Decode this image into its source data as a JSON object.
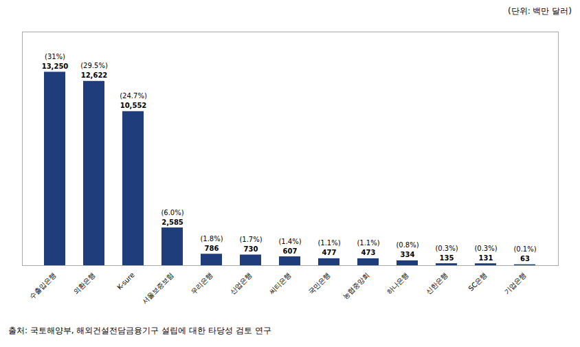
{
  "chart_data": {
    "type": "bar",
    "subtitle": "(단위: 백만 달러)",
    "caption": "출처: 국토해양부, 해외건설전담금융기구 설립에 대한 타당성 검토 연구",
    "categories": [
      "수출입은행",
      "외환은행",
      "K-sure",
      "서울보증보험",
      "우리은행",
      "산업은행",
      "씨티은행",
      "국민은행",
      "농협중앙회",
      "하나은행",
      "신한은행",
      "SC은행",
      "기업은행"
    ],
    "values": [
      13250,
      12622,
      10552,
      2585,
      786,
      730,
      607,
      477,
      473,
      334,
      135,
      131,
      63
    ],
    "value_labels": [
      "13,250",
      "12,622",
      "10,552",
      "2,585",
      "786",
      "730",
      "607",
      "477",
      "473",
      "334",
      "135",
      "131",
      "63"
    ],
    "percentage_labels": [
      "(31%)",
      "(29.5%)",
      "(24.7%)",
      "(6.0%)",
      "(1.8%)",
      "(1.7%)",
      "(1.4%)",
      "(1.1%)",
      "(1.1%)",
      "(0.8%)",
      "(0.3%)",
      "(0.3%)",
      "(0.1%)"
    ],
    "color": "#1F3D7A",
    "ylim": [
      0,
      16000
    ],
    "grid": false,
    "data_labels": true,
    "tick_labels": "x"
  }
}
